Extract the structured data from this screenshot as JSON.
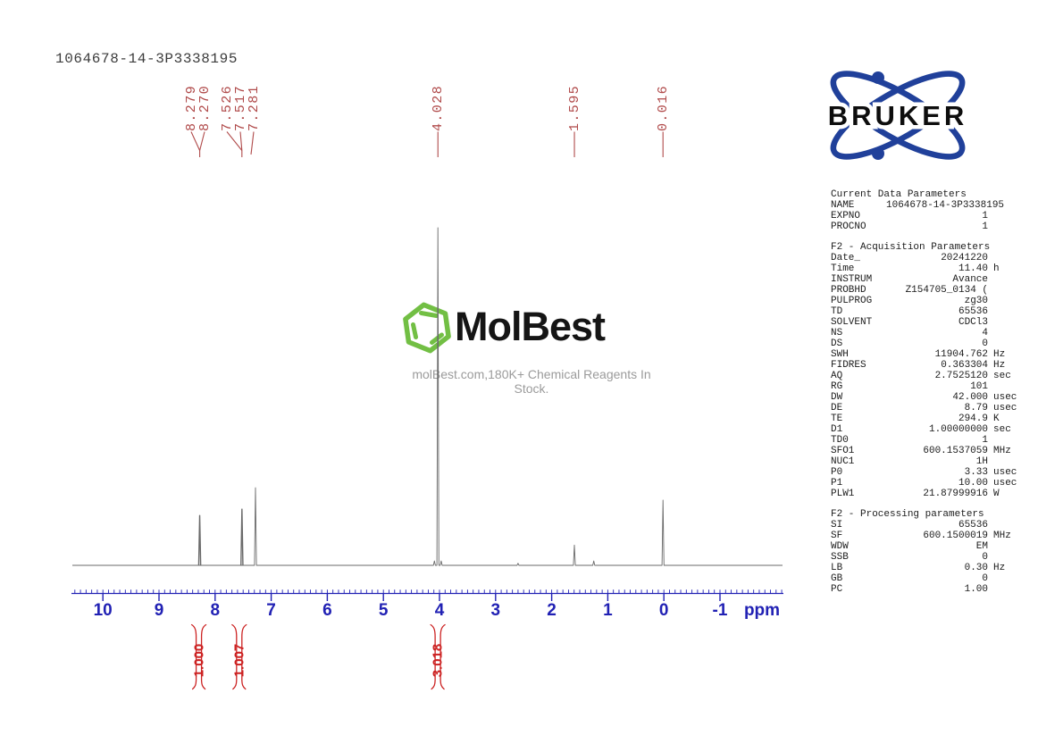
{
  "header": {
    "title": "1064678-14-3P3338195"
  },
  "colors": {
    "axis_blue": "#2121b4",
    "peak_label_red": "#b04a4a",
    "integral_red": "#cc2222",
    "spectrum_gray": "#6a6a6a",
    "bruker_blue": "#20409a",
    "molbest_green": "#72bf44"
  },
  "bruker": {
    "wordmark": "BRUKER"
  },
  "watermark": {
    "brand": "MolBest",
    "tagline": "molBest.com,180K+ Chemical Reagents In Stock."
  },
  "chart_data": {
    "type": "line",
    "title": "1064678-14-3P3338195",
    "xlabel": "ppm",
    "x_axis": {
      "range_ppm": [
        10.56,
        -2.13
      ],
      "tick_labels": [
        10,
        9,
        8,
        7,
        6,
        5,
        4,
        3,
        2,
        1,
        0,
        -1
      ],
      "minor_tick_step": 0.1,
      "unit_label": "ppm",
      "grid": false
    },
    "peaks": [
      {
        "ppm": 8.279,
        "intensity": 0.148
      },
      {
        "ppm": 8.27,
        "intensity": 0.148
      },
      {
        "ppm": 7.526,
        "intensity": 0.167
      },
      {
        "ppm": 7.517,
        "intensity": 0.167
      },
      {
        "ppm": 7.281,
        "intensity": 0.23
      },
      {
        "ppm": 4.09,
        "intensity": 0.013
      },
      {
        "ppm": 4.028,
        "intensity": 1.0
      },
      {
        "ppm": 3.97,
        "intensity": 0.013
      },
      {
        "ppm": 2.6,
        "intensity": 0.006
      },
      {
        "ppm": 1.595,
        "intensity": 0.06
      },
      {
        "ppm": 1.25,
        "intensity": 0.013
      },
      {
        "ppm": 0.016,
        "intensity": 0.193
      }
    ],
    "peak_labels": [
      {
        "text": "8.279",
        "label_ppm": 8.427,
        "target_ppm": 8.274,
        "group": 1
      },
      {
        "text": "8.270",
        "label_ppm": 8.188,
        "target_ppm": 8.274,
        "group": 1
      },
      {
        "text": "7.526",
        "label_ppm": 7.79,
        "target_ppm": 7.522,
        "group": 2
      },
      {
        "text": "7.517",
        "label_ppm": 7.551,
        "target_ppm": 7.522,
        "group": 2
      },
      {
        "text": "7.281",
        "label_ppm": 7.312,
        "target_ppm": 7.36,
        "group": 3
      },
      {
        "text": "4.028",
        "label_ppm": 4.028,
        "target_ppm": 4.028,
        "group": 4
      },
      {
        "text": "1.595",
        "label_ppm": 1.595,
        "target_ppm": 1.595,
        "group": 5
      },
      {
        "text": "0.016",
        "label_ppm": 0.016,
        "target_ppm": 0.016,
        "group": 6
      }
    ],
    "integrations": [
      {
        "value": "1.000",
        "ppm": 8.29
      },
      {
        "value": "1.007",
        "ppm": 7.57
      },
      {
        "value": "3.018",
        "ppm": 4.03
      }
    ]
  },
  "params": {
    "groups": [
      {
        "title": "Current Data Parameters",
        "rows": [
          {
            "name": "NAME",
            "value": "1064678-14-3P3338195",
            "unit": ""
          },
          {
            "name": "EXPNO",
            "value": "1",
            "unit": ""
          },
          {
            "name": "PROCNO",
            "value": "1",
            "unit": ""
          }
        ]
      },
      {
        "title": "F2 - Acquisition Parameters",
        "rows": [
          {
            "name": "Date_",
            "value": "20241220",
            "unit": ""
          },
          {
            "name": "Time",
            "value": "11.40",
            "unit": "h"
          },
          {
            "name": "INSTRUM",
            "value": "Avance",
            "unit": ""
          },
          {
            "name": "PROBHD",
            "value": "Z154705_0134 (",
            "unit": ""
          },
          {
            "name": "PULPROG",
            "value": "zg30",
            "unit": ""
          },
          {
            "name": "TD",
            "value": "65536",
            "unit": ""
          },
          {
            "name": "SOLVENT",
            "value": "CDCl3",
            "unit": ""
          },
          {
            "name": "NS",
            "value": "4",
            "unit": ""
          },
          {
            "name": "DS",
            "value": "0",
            "unit": ""
          },
          {
            "name": "SWH",
            "value": "11904.762",
            "unit": "Hz"
          },
          {
            "name": "FIDRES",
            "value": "0.363304",
            "unit": "Hz"
          },
          {
            "name": "AQ",
            "value": "2.7525120",
            "unit": "sec"
          },
          {
            "name": "RG",
            "value": "101",
            "unit": ""
          },
          {
            "name": "DW",
            "value": "42.000",
            "unit": "usec"
          },
          {
            "name": "DE",
            "value": "8.79",
            "unit": "usec"
          },
          {
            "name": "TE",
            "value": "294.9",
            "unit": "K"
          },
          {
            "name": "D1",
            "value": "1.00000000",
            "unit": "sec"
          },
          {
            "name": "TD0",
            "value": "1",
            "unit": ""
          },
          {
            "name": "SFO1",
            "value": "600.1537059",
            "unit": "MHz"
          },
          {
            "name": "NUC1",
            "value": "1H",
            "unit": ""
          },
          {
            "name": "P0",
            "value": "3.33",
            "unit": "usec"
          },
          {
            "name": "P1",
            "value": "10.00",
            "unit": "usec"
          },
          {
            "name": "PLW1",
            "value": "21.87999916",
            "unit": "W"
          }
        ]
      },
      {
        "title": "F2 - Processing parameters",
        "rows": [
          {
            "name": "SI",
            "value": "65536",
            "unit": ""
          },
          {
            "name": "SF",
            "value": "600.1500019",
            "unit": "MHz"
          },
          {
            "name": "WDW",
            "value": "EM",
            "unit": ""
          },
          {
            "name": "SSB",
            "value": "0",
            "unit": ""
          },
          {
            "name": "LB",
            "value": "0.30",
            "unit": "Hz"
          },
          {
            "name": "GB",
            "value": "0",
            "unit": ""
          },
          {
            "name": "PC",
            "value": "1.00",
            "unit": ""
          }
        ]
      }
    ]
  }
}
